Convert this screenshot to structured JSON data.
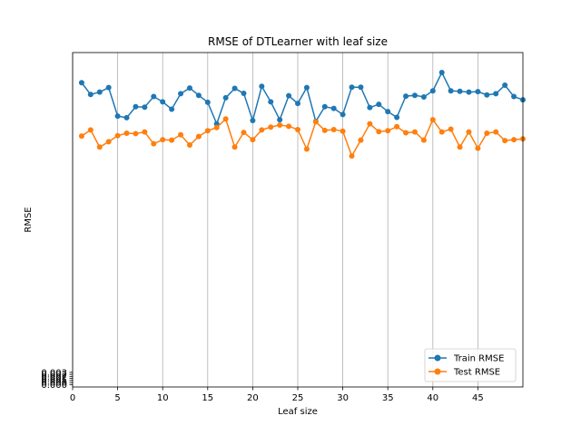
{
  "chart_data": {
    "type": "line",
    "title": "RMSE of DTLearner with leaf size",
    "xlabel": "Leaf size",
    "ylabel": "RMSE",
    "xlim": [
      0,
      50
    ],
    "ylim": [
      -0.0006,
      0.0815
    ],
    "x": [
      1,
      2,
      3,
      4,
      5,
      6,
      7,
      8,
      9,
      10,
      11,
      12,
      13,
      14,
      15,
      16,
      17,
      18,
      19,
      20,
      21,
      22,
      23,
      24,
      25,
      26,
      27,
      28,
      29,
      30,
      31,
      32,
      33,
      34,
      35,
      36,
      37,
      38,
      39,
      40,
      41,
      42,
      43,
      44,
      45,
      46,
      47,
      48,
      49,
      50
    ],
    "xticks": [
      0,
      5,
      10,
      15,
      20,
      25,
      30,
      35,
      40,
      45
    ],
    "ytick_labels": [
      "0.000",
      "0.000",
      "0.001",
      "0.001",
      "0.002",
      "0.002",
      "0.003"
    ],
    "yticks": [
      0.0,
      0.0005,
      0.001,
      0.0015,
      0.002,
      0.0025,
      0.003
    ],
    "grid": "x-only",
    "legend_position": "lower-right",
    "series": [
      {
        "name": "Train RMSE",
        "color": "#1f77b4",
        "values": [
          0.0741,
          0.0712,
          0.0718,
          0.0729,
          0.0659,
          0.0655,
          0.0682,
          0.0681,
          0.0707,
          0.0694,
          0.0676,
          0.0714,
          0.0728,
          0.071,
          0.0693,
          0.064,
          0.0704,
          0.0727,
          0.0715,
          0.0648,
          0.0732,
          0.0694,
          0.065,
          0.0709,
          0.069,
          0.0729,
          0.0646,
          0.0682,
          0.0678,
          0.0663,
          0.073,
          0.073,
          0.068,
          0.0688,
          0.067,
          0.0656,
          0.0708,
          0.071,
          0.0706,
          0.0721,
          0.0766,
          0.0721,
          0.072,
          0.0718,
          0.0719,
          0.0711,
          0.0714,
          0.0735,
          0.0707,
          0.0699
        ]
      },
      {
        "name": "Test RMSE",
        "color": "#ff7f0e",
        "values": [
          0.061,
          0.0625,
          0.0583,
          0.0596,
          0.0611,
          0.0617,
          0.0616,
          0.062,
          0.0591,
          0.0601,
          0.06,
          0.0613,
          0.0588,
          0.0609,
          0.0623,
          0.0631,
          0.0652,
          0.0583,
          0.0619,
          0.0601,
          0.0625,
          0.0632,
          0.0637,
          0.0634,
          0.0626,
          0.0578,
          0.0645,
          0.0624,
          0.0626,
          0.0622,
          0.0561,
          0.06,
          0.064,
          0.0621,
          0.0623,
          0.0633,
          0.0618,
          0.062,
          0.06,
          0.065,
          0.062,
          0.0627,
          0.0583,
          0.062,
          0.058,
          0.0617,
          0.062,
          0.0599,
          0.0601,
          0.0603
        ]
      }
    ]
  }
}
